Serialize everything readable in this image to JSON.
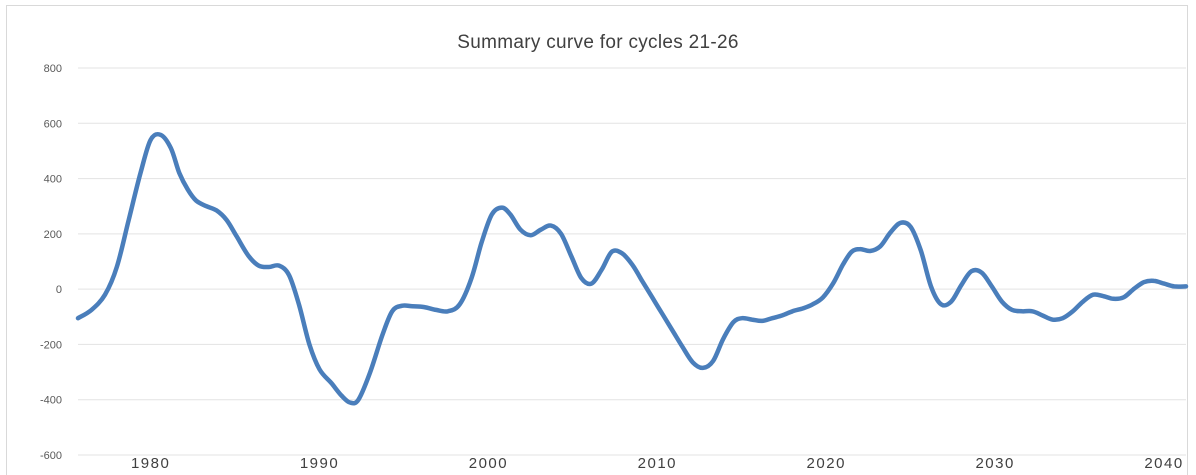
{
  "chart_data": {
    "type": "line",
    "title": "Summary curve for cycles 21-26",
    "xlabel": "",
    "ylabel": "",
    "xlim": [
      1975.7,
      2041.3
    ],
    "ylim": [
      -600,
      800
    ],
    "y_ticks": [
      "800",
      "600",
      "400",
      "200",
      "0",
      "-200",
      "-400",
      "-600"
    ],
    "x_ticks": [
      "1980",
      "1990",
      "2000",
      "2010",
      "2020",
      "2030",
      "2040"
    ],
    "grid": "horizontal",
    "legend": "none",
    "line_color": "#4a7ebb",
    "series": [
      {
        "x": [
          1975.7,
          1976.5,
          1977.3,
          1978.0,
          1978.7,
          1979.4,
          1980.0,
          1980.6,
          1981.2,
          1981.7,
          1982.2,
          1982.7,
          1983.3,
          1983.9,
          1984.5,
          1985.1,
          1985.8,
          1986.4,
          1987.0,
          1987.6,
          1988.2,
          1988.8,
          1989.4,
          1990.0,
          1990.7,
          1991.3,
          1991.8,
          1992.3,
          1993.0,
          1993.7,
          1994.3,
          1994.9,
          1995.5,
          1996.2,
          1996.9,
          1997.6,
          1998.3,
          1999.0,
          1999.6,
          2000.2,
          2000.8,
          2001.3,
          2001.9,
          2002.5,
          2003.1,
          2003.7,
          2004.3,
          2004.9,
          2005.5,
          2006.1,
          2006.7,
          2007.3,
          2007.9,
          2008.5,
          2009.1,
          2009.7,
          2010.3,
          2010.9,
          2011.5,
          2012.1,
          2012.7,
          2013.3,
          2013.9,
          2014.5,
          2015.0,
          2015.6,
          2016.2,
          2016.8,
          2017.4,
          2018.0,
          2018.6,
          2019.2,
          2019.8,
          2020.4,
          2021.0,
          2021.5,
          2022.0,
          2022.6,
          2023.2,
          2023.8,
          2024.4,
          2025.0,
          2025.6,
          2026.2,
          2026.8,
          2027.4,
          2028.0,
          2028.6,
          2029.2,
          2029.8,
          2030.4,
          2031.0,
          2031.6,
          2032.2,
          2032.8,
          2033.4,
          2034.0,
          2034.6,
          2035.2,
          2035.8,
          2036.4,
          2037.0,
          2037.6,
          2038.2,
          2038.8,
          2039.4,
          2040.0,
          2040.6,
          2041.3
        ],
        "values": [
          -105,
          -75,
          -20,
          80,
          250,
          420,
          540,
          558,
          510,
          420,
          360,
          320,
          300,
          285,
          250,
          190,
          120,
          85,
          80,
          85,
          50,
          -60,
          -200,
          -290,
          -340,
          -385,
          -410,
          -400,
          -300,
          -170,
          -80,
          -60,
          -62,
          -65,
          -75,
          -80,
          -55,
          40,
          170,
          270,
          295,
          270,
          215,
          195,
          215,
          230,
          200,
          120,
          40,
          20,
          70,
          135,
          130,
          90,
          30,
          -30,
          -90,
          -150,
          -210,
          -265,
          -285,
          -260,
          -180,
          -120,
          -105,
          -110,
          -115,
          -105,
          -95,
          -80,
          -70,
          -55,
          -30,
          20,
          90,
          135,
          145,
          138,
          155,
          205,
          240,
          225,
          140,
          10,
          -55,
          -45,
          15,
          65,
          60,
          10,
          -45,
          -75,
          -80,
          -80,
          -95,
          -110,
          -105,
          -80,
          -45,
          -20,
          -25,
          -35,
          -30,
          0,
          25,
          30,
          20,
          10,
          10
        ]
      }
    ]
  }
}
